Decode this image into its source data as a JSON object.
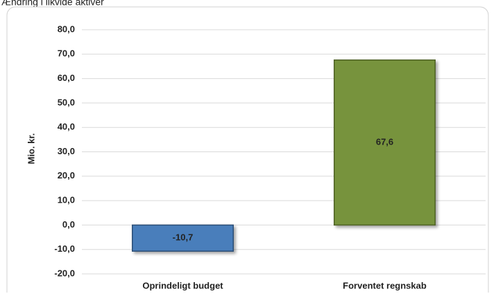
{
  "chart_data": {
    "type": "bar",
    "title": "Ændring i likvide aktiver",
    "y_label": "Mio. kr.",
    "categories": [
      "Oprindeligt budget",
      "Forventet regnskab"
    ],
    "values": [
      -10.7,
      67.6
    ],
    "value_labels": [
      "-10,7",
      "67,6"
    ],
    "colors": [
      "#4a7ebb",
      "#77933c"
    ],
    "border_colors": [
      "#2c4d75",
      "#4f6228"
    ],
    "ylim": [
      -20,
      80
    ],
    "yticks": [
      {
        "value": -20,
        "label": "-20,0"
      },
      {
        "value": -10,
        "label": "-10,0"
      },
      {
        "value": 0,
        "label": "0,0"
      },
      {
        "value": 10,
        "label": "10,0"
      },
      {
        "value": 20,
        "label": "20,0"
      },
      {
        "value": 30,
        "label": "30,0"
      },
      {
        "value": 40,
        "label": "40,0"
      },
      {
        "value": 50,
        "label": "50,0"
      },
      {
        "value": 60,
        "label": "60,0"
      },
      {
        "value": 70,
        "label": "70,0"
      },
      {
        "value": 80,
        "label": "80,0"
      }
    ],
    "grid": true
  }
}
